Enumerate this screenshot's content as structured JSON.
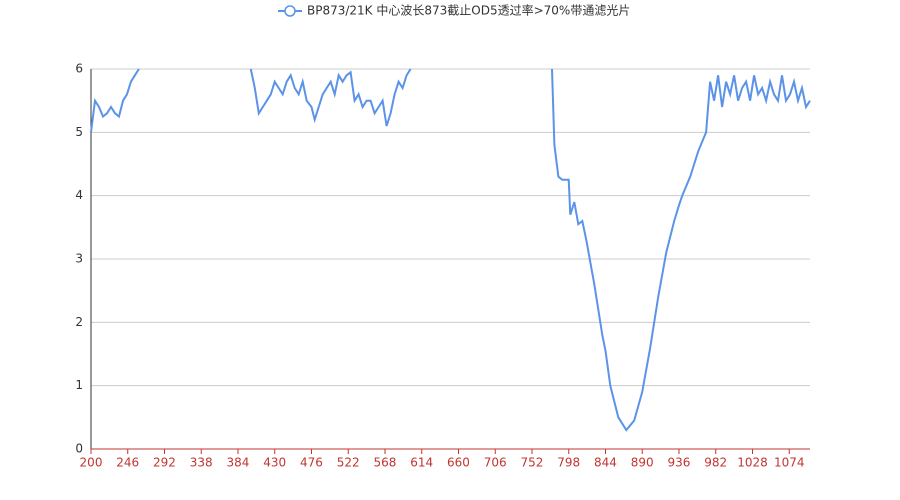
{
  "chart_data": {
    "type": "line",
    "x": [
      200,
      205,
      210,
      215,
      220,
      225,
      230,
      235,
      240,
      245,
      250,
      255,
      260,
      300,
      400,
      405,
      410,
      415,
      420,
      425,
      430,
      435,
      440,
      445,
      450,
      455,
      460,
      465,
      470,
      476,
      480,
      485,
      490,
      495,
      500,
      505,
      510,
      515,
      520,
      525,
      530,
      535,
      540,
      545,
      550,
      555,
      560,
      565,
      570,
      575,
      580,
      585,
      590,
      595,
      600,
      700,
      777,
      780,
      785,
      790,
      798,
      800,
      805,
      810,
      815,
      820,
      830,
      840,
      844,
      850,
      860,
      870,
      880,
      890,
      900,
      910,
      920,
      930,
      936,
      940,
      950,
      960,
      970,
      975,
      980,
      985,
      990,
      995,
      1000,
      1005,
      1010,
      1015,
      1020,
      1025,
      1030,
      1035,
      1040,
      1045,
      1050,
      1055,
      1060,
      1065,
      1070,
      1075,
      1080,
      1085,
      1090,
      1095,
      1100
    ],
    "series": [
      {
        "name": "BP873/21K 中心波长873截止OD5透过率>70%带通滤光片",
        "color": "#5b93e8",
        "values": [
          5.0,
          5.5,
          5.4,
          5.25,
          5.3,
          5.4,
          5.3,
          5.25,
          5.5,
          5.6,
          5.8,
          5.9,
          6.0,
          null,
          6.0,
          5.7,
          5.3,
          5.4,
          5.5,
          5.6,
          5.8,
          5.7,
          5.6,
          5.8,
          5.9,
          5.7,
          5.6,
          5.8,
          5.5,
          5.4,
          5.2,
          5.4,
          5.6,
          5.7,
          5.8,
          5.6,
          5.9,
          5.8,
          5.9,
          5.95,
          5.5,
          5.6,
          5.4,
          5.5,
          5.5,
          5.3,
          5.4,
          5.5,
          5.1,
          5.3,
          5.6,
          5.8,
          5.7,
          5.9,
          6.0,
          null,
          6.0,
          4.8,
          4.3,
          4.25,
          4.25,
          3.7,
          3.9,
          3.55,
          3.6,
          3.3,
          2.6,
          1.8,
          1.55,
          1.0,
          0.5,
          0.3,
          0.45,
          0.9,
          1.6,
          2.4,
          3.1,
          3.6,
          3.85,
          4.0,
          4.3,
          4.7,
          5.0,
          5.8,
          5.5,
          5.9,
          5.4,
          5.8,
          5.6,
          5.9,
          5.5,
          5.7,
          5.8,
          5.5,
          5.9,
          5.6,
          5.7,
          5.5,
          5.8,
          5.6,
          5.5,
          5.9,
          5.5,
          5.6,
          5.8,
          5.5,
          5.7,
          5.4,
          5.5
        ]
      }
    ],
    "xlim": [
      200,
      1100
    ],
    "xticks": [
      200,
      246,
      292,
      338,
      384,
      430,
      476,
      522,
      568,
      614,
      660,
      706,
      752,
      798,
      844,
      890,
      936,
      982,
      1028,
      1074
    ],
    "ylim": [
      0,
      6
    ],
    "yticks": [
      0,
      1,
      2,
      3,
      4,
      5,
      6
    ],
    "grid": true
  }
}
